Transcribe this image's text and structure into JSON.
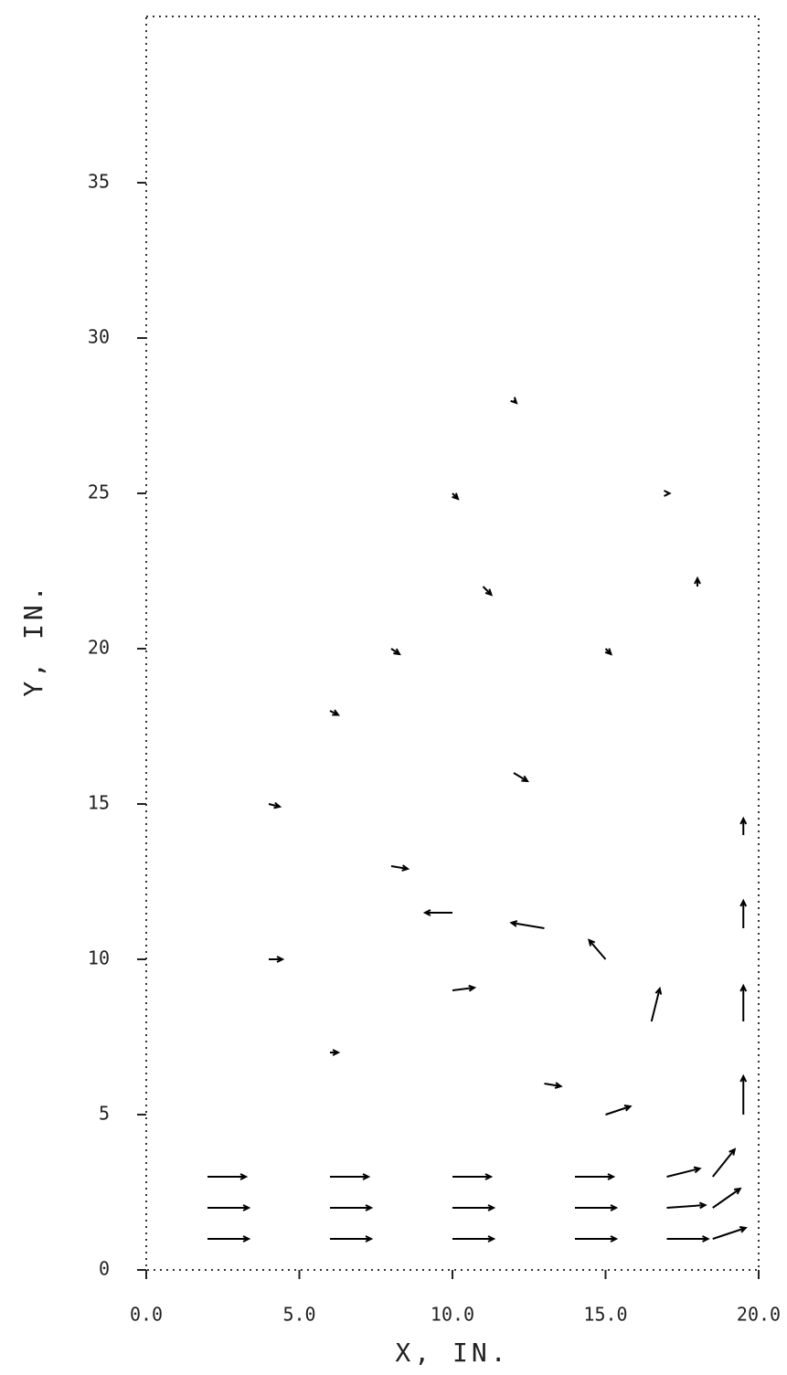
{
  "chart_data": {
    "type": "quiver",
    "xlabel": "X, IN.",
    "ylabel": "Y, IN.",
    "xlim": [
      0,
      20
    ],
    "ylim": [
      0,
      40
    ],
    "xticks": [
      {
        "value": 0,
        "label": "0.0"
      },
      {
        "value": 5,
        "label": "5.0"
      },
      {
        "value": 10,
        "label": "10.0"
      },
      {
        "value": 15,
        "label": "15.0"
      },
      {
        "value": 20,
        "label": "20.0"
      }
    ],
    "yticks": [
      0,
      5,
      10,
      15,
      20,
      25,
      30,
      35
    ],
    "color": "#000000",
    "x": [
      2,
      6,
      10,
      14,
      17,
      18.5,
      2,
      6,
      10,
      14,
      17,
      18.5,
      2,
      6,
      10,
      14,
      17,
      18.5,
      19.5,
      19.5,
      19.5,
      19.5,
      16.5,
      15,
      13,
      10,
      10,
      13,
      15,
      4,
      6,
      8,
      10,
      12,
      4,
      6,
      8,
      12,
      15,
      17,
      18,
      11
    ],
    "y": [
      1,
      1,
      1,
      1,
      1,
      1,
      2,
      2,
      2,
      2,
      2,
      2,
      3,
      3,
      3,
      3,
      3,
      3,
      5,
      8,
      11,
      14,
      8,
      10,
      11,
      11.5,
      9,
      6,
      5,
      15,
      18,
      20,
      25,
      28,
      10,
      7,
      13,
      16,
      20,
      25,
      22,
      22
    ],
    "u": [
      1.5,
      1.5,
      1.5,
      1.5,
      1.5,
      1.2,
      1.5,
      1.5,
      1.5,
      1.5,
      1.4,
      1.0,
      1.4,
      1.4,
      1.4,
      1.4,
      1.2,
      0.8,
      0,
      0,
      0,
      0,
      0.3,
      -0.6,
      -1.2,
      -1.0,
      0.8,
      0.6,
      0.9,
      0.4,
      0.3,
      0.3,
      0.2,
      0.1,
      0.5,
      0.3,
      0.6,
      0.5,
      0.2,
      0.1,
      0,
      0.3
    ],
    "v": [
      0,
      0,
      0,
      0,
      0,
      0.4,
      0,
      0,
      0,
      0,
      0.1,
      0.7,
      0,
      0,
      0,
      0,
      0.3,
      1.0,
      1.4,
      1.3,
      1.0,
      0.6,
      1.2,
      0.7,
      0.2,
      0,
      0.1,
      -0.1,
      0.3,
      -0.1,
      -0.15,
      -0.2,
      -0.2,
      -0.1,
      0,
      0,
      -0.1,
      -0.3,
      -0.2,
      0,
      0.3,
      -0.3
    ]
  }
}
